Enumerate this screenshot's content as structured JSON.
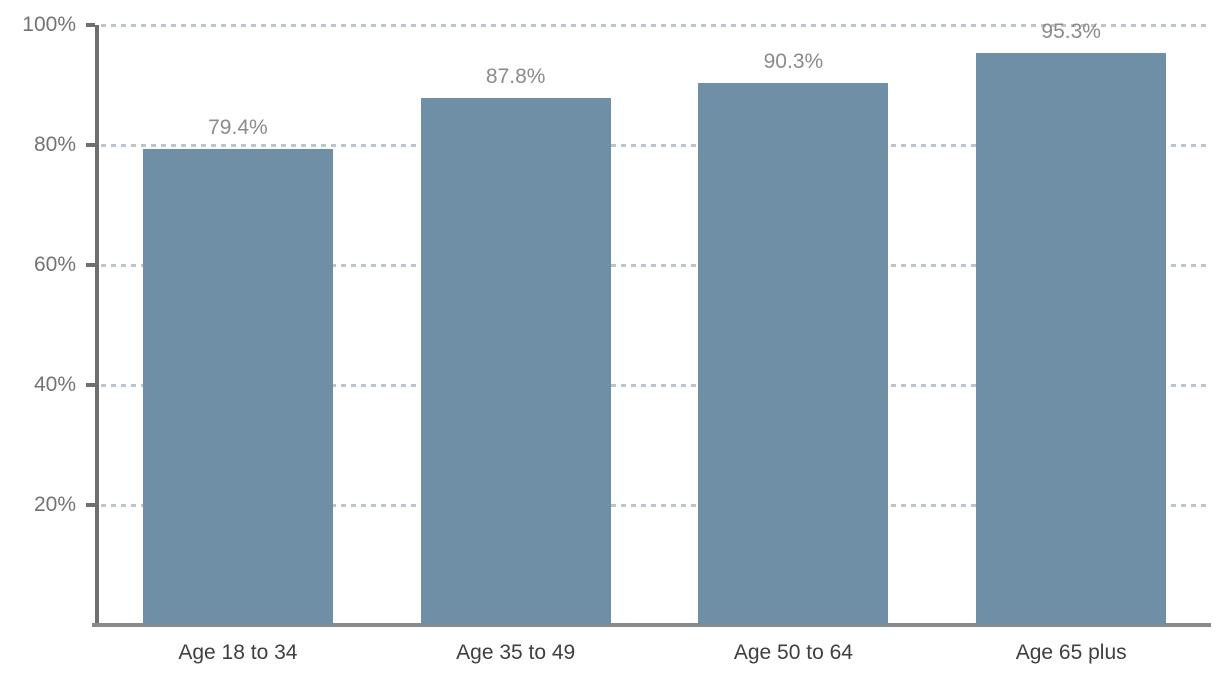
{
  "chart_data": {
    "type": "bar",
    "title": "",
    "xlabel": "",
    "ylabel": "",
    "legend": "none",
    "grid": "horizontal-dashed",
    "categories": [
      "Age 18 to 34",
      "Age 35 to 49",
      "Age 50 to 64",
      "Age 65 plus"
    ],
    "values": [
      79.4,
      87.8,
      90.3,
      95.3
    ],
    "value_labels": [
      "79.4%",
      "87.8%",
      "90.3%",
      "95.3%"
    ],
    "y_ticks": [
      {
        "value": 20,
        "label": "20%"
      },
      {
        "value": 40,
        "label": "40%"
      },
      {
        "value": 60,
        "label": "60%"
      },
      {
        "value": 80,
        "label": "80%"
      },
      {
        "value": 100,
        "label": "100%"
      }
    ],
    "ylim": [
      0,
      100
    ],
    "colors": {
      "bar": "#6E8FA5",
      "gridline": "#BBC5CF",
      "axis_line": "#6F6F6F",
      "baseline": "#898989",
      "value_label": "#8B8B8B",
      "y_tick_label": "#737373",
      "x_tick_label": "#3F3F3F",
      "background": "#FFFFFF"
    }
  }
}
